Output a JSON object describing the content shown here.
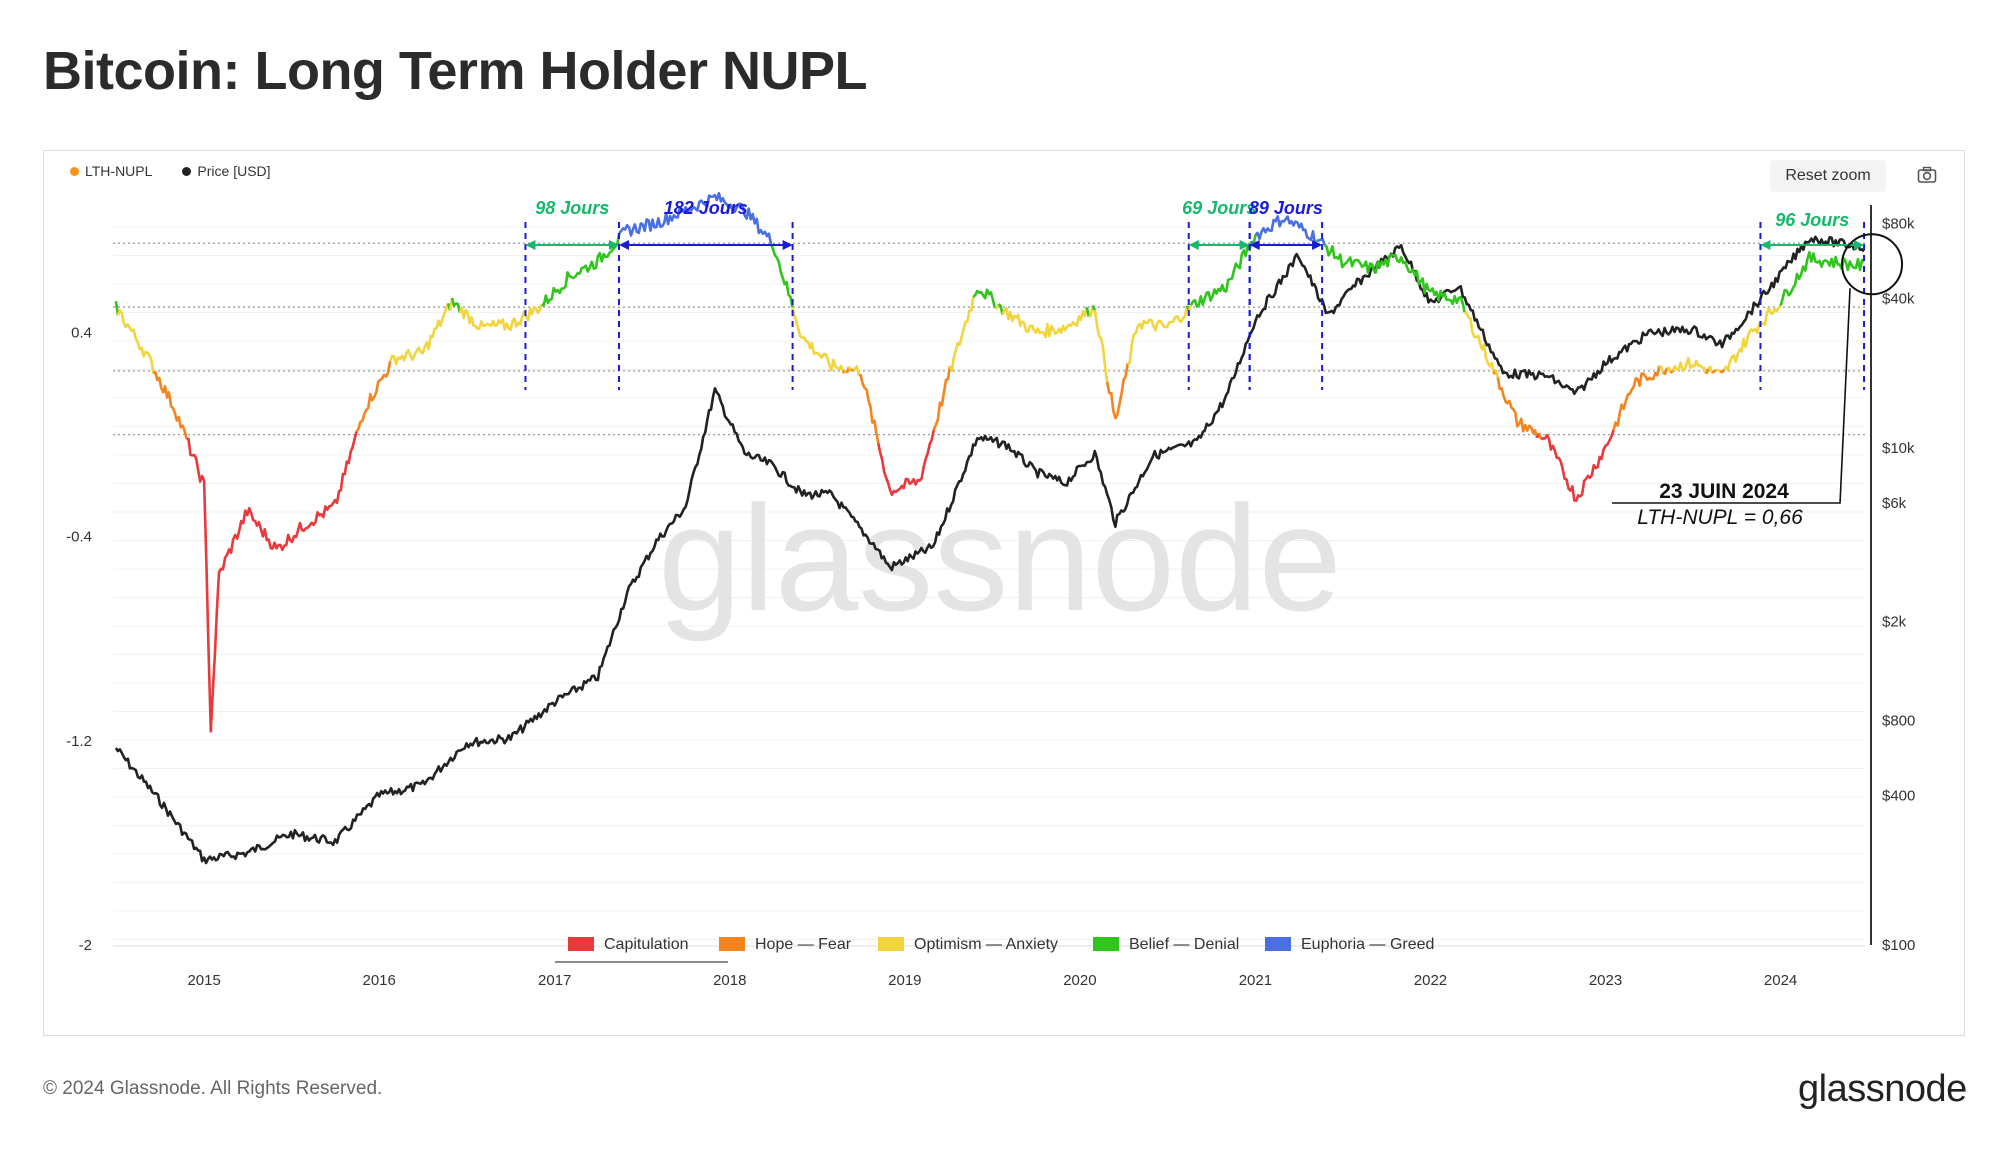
{
  "page": {
    "title": "Bitcoin: Long Term Holder NUPL",
    "copyright": "© 2024 Glassnode. All Rights Reserved.",
    "logo": "glassnode",
    "watermark": "glassnode"
  },
  "toolbar": {
    "reset_zoom_label": "Reset zoom",
    "camera_icon": "camera-icon"
  },
  "colors": {
    "capitulation": "#e8393c",
    "hope_fear": "#f5841f",
    "optimism_anxiety": "#f2d43d",
    "belief_denial": "#2fc51d",
    "euphoria_greed": "#4a6fe3",
    "price": "#222222",
    "legend_nupl_dot": "#f7931a",
    "green_marker": "#16b86b",
    "blue_marker": "#1a1adc"
  },
  "chart_data": {
    "type": "line",
    "legend_top": [
      {
        "name": "LTH-NUPL",
        "color": "#f7931a"
      },
      {
        "name": "Price [USD]",
        "color": "#222222"
      }
    ],
    "x_ticks": [
      "2015",
      "2016",
      "2017",
      "2018",
      "2019",
      "2020",
      "2021",
      "2022",
      "2023",
      "2024"
    ],
    "x_range": [
      "2014-06-25",
      "2024-06-25"
    ],
    "y_left": {
      "ticks": [
        "0.4",
        "-0.4",
        "-1.2",
        "-2"
      ],
      "tick_values": [
        0.4,
        -0.4,
        -1.2,
        -2
      ],
      "range": [
        -2,
        0.9
      ]
    },
    "y_right": {
      "ticks": [
        "$80k",
        "$40k",
        "$10k",
        "$6k",
        "$2k",
        "$800",
        "$400",
        "$100"
      ],
      "tick_values": [
        80000,
        40000,
        10000,
        6000,
        2000,
        800,
        400,
        100
      ],
      "scale": "log",
      "range": [
        100,
        95000
      ]
    },
    "zones_legend": [
      {
        "label": "Capitulation",
        "color": "#e8393c"
      },
      {
        "label": "Hope — Fear",
        "color": "#f5841f"
      },
      {
        "label": "Optimism — Anxiety",
        "color": "#f2d43d"
      },
      {
        "label": "Belief — Denial",
        "color": "#2fc51d"
      },
      {
        "label": "Euphoria — Greed",
        "color": "#4a6fe3"
      }
    ],
    "zone_thresholds": [
      0,
      0.25,
      0.5,
      0.75
    ],
    "series": [
      {
        "name": "LTH-NUPL",
        "points": [
          [
            "2014-07",
            0.5
          ],
          [
            "2014-09",
            0.32
          ],
          [
            "2014-11",
            0.1
          ],
          [
            "2015-01",
            -0.2
          ],
          [
            "2015-01-15",
            -1.15
          ],
          [
            "2015-02",
            -0.55
          ],
          [
            "2015-04",
            -0.3
          ],
          [
            "2015-06",
            -0.45
          ],
          [
            "2015-08",
            -0.35
          ],
          [
            "2015-10",
            -0.28
          ],
          [
            "2015-12",
            0.1
          ],
          [
            "2016-02",
            0.3
          ],
          [
            "2016-04",
            0.32
          ],
          [
            "2016-06",
            0.52
          ],
          [
            "2016-08",
            0.42
          ],
          [
            "2016-10",
            0.43
          ],
          [
            "2016-12",
            0.5
          ],
          [
            "2017-02",
            0.62
          ],
          [
            "2017-04",
            0.68
          ],
          [
            "2017-06",
            0.8
          ],
          [
            "2017-08",
            0.83
          ],
          [
            "2017-10",
            0.88
          ],
          [
            "2017-12",
            0.93
          ],
          [
            "2018-02",
            0.88
          ],
          [
            "2018-04",
            0.75
          ],
          [
            "2018-06",
            0.38
          ],
          [
            "2018-08",
            0.27
          ],
          [
            "2018-10",
            0.25
          ],
          [
            "2018-12",
            -0.22
          ],
          [
            "2019-02",
            -0.18
          ],
          [
            "2019-04",
            0.22
          ],
          [
            "2019-06",
            0.58
          ],
          [
            "2019-08",
            0.48
          ],
          [
            "2019-10",
            0.4
          ],
          [
            "2019-12",
            0.42
          ],
          [
            "2020-02",
            0.5
          ],
          [
            "2020-03-15",
            0.05
          ],
          [
            "2020-05",
            0.44
          ],
          [
            "2020-07",
            0.42
          ],
          [
            "2020-09",
            0.52
          ],
          [
            "2020-11",
            0.58
          ],
          [
            "2021-01",
            0.78
          ],
          [
            "2021-03",
            0.85
          ],
          [
            "2021-05",
            0.78
          ],
          [
            "2021-07",
            0.68
          ],
          [
            "2021-09",
            0.65
          ],
          [
            "2021-11",
            0.7
          ],
          [
            "2022-01",
            0.55
          ],
          [
            "2022-03",
            0.53
          ],
          [
            "2022-05",
            0.3
          ],
          [
            "2022-07",
            0.05
          ],
          [
            "2022-09",
            -0.02
          ],
          [
            "2022-11",
            -0.25
          ],
          [
            "2023-01",
            -0.05
          ],
          [
            "2023-03",
            0.2
          ],
          [
            "2023-05",
            0.26
          ],
          [
            "2023-07",
            0.28
          ],
          [
            "2023-09",
            0.23
          ],
          [
            "2023-11",
            0.4
          ],
          [
            "2024-01",
            0.52
          ],
          [
            "2024-03",
            0.69
          ],
          [
            "2024-06-23",
            0.66
          ]
        ]
      },
      {
        "name": "Price [USD]",
        "points": [
          [
            "2014-07",
            620
          ],
          [
            "2014-10",
            380
          ],
          [
            "2015-01",
            220
          ],
          [
            "2015-04",
            235
          ],
          [
            "2015-07",
            280
          ],
          [
            "2015-10",
            260
          ],
          [
            "2016-01",
            400
          ],
          [
            "2016-04",
            440
          ],
          [
            "2016-07",
            650
          ],
          [
            "2016-10",
            680
          ],
          [
            "2017-01",
            950
          ],
          [
            "2017-04",
            1200
          ],
          [
            "2017-06",
            2600
          ],
          [
            "2017-08",
            4200
          ],
          [
            "2017-10",
            5800
          ],
          [
            "2017-12",
            17000
          ],
          [
            "2018-02",
            9500
          ],
          [
            "2018-04",
            8500
          ],
          [
            "2018-06",
            6500
          ],
          [
            "2018-08",
            6500
          ],
          [
            "2018-11",
            4000
          ],
          [
            "2018-12",
            3300
          ],
          [
            "2019-03",
            4000
          ],
          [
            "2019-06",
            11000
          ],
          [
            "2019-08",
            10300
          ],
          [
            "2019-10",
            8000
          ],
          [
            "2019-12",
            7200
          ],
          [
            "2020-02",
            9500
          ],
          [
            "2020-03-15",
            5000
          ],
          [
            "2020-06",
            9300
          ],
          [
            "2020-09",
            10500
          ],
          [
            "2020-11",
            16000
          ],
          [
            "2021-01",
            33000
          ],
          [
            "2021-04",
            60000
          ],
          [
            "2021-06",
            34000
          ],
          [
            "2021-08",
            46000
          ],
          [
            "2021-11",
            65000
          ],
          [
            "2022-01",
            38000
          ],
          [
            "2022-03",
            45000
          ],
          [
            "2022-06",
            20000
          ],
          [
            "2022-09",
            19500
          ],
          [
            "2022-11",
            16500
          ],
          [
            "2023-01",
            22000
          ],
          [
            "2023-04",
            29000
          ],
          [
            "2023-07",
            30000
          ],
          [
            "2023-09",
            26000
          ],
          [
            "2023-12",
            42000
          ],
          [
            "2024-03",
            70000
          ],
          [
            "2024-06-23",
            64000
          ]
        ]
      }
    ],
    "annotations": {
      "periods": [
        {
          "label": "98 Jours",
          "start": "2016-11-01",
          "end": "2017-05-15",
          "kind": "green"
        },
        {
          "label": "182 Jours",
          "start": "2017-05-15",
          "end": "2018-05-12",
          "kind": "blue"
        },
        {
          "label": "69 Jours",
          "start": "2020-08-15",
          "end": "2020-12-20",
          "kind": "green"
        },
        {
          "label": "89 Jours",
          "start": "2020-12-20",
          "end": "2021-05-20",
          "kind": "blue"
        },
        {
          "label": "96 Jours",
          "start": "2023-11-20",
          "end": "2024-06-23",
          "kind": "green"
        }
      ],
      "callout_title": "23 JUIN 2024",
      "callout_value": "LTH-NUPL = 0,66",
      "callout_date": "2024-06-23",
      "callout_nupl": 0.66
    }
  }
}
